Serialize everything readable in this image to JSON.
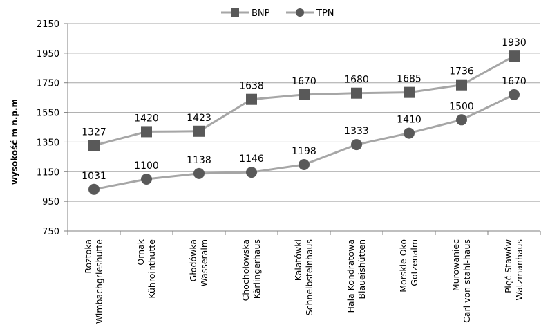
{
  "chart_data": {
    "type": "line",
    "title": "",
    "xlabel": "",
    "ylabel": "wysokość m n.p.m",
    "ylim": [
      750,
      2150
    ],
    "yticks": [
      750,
      950,
      1150,
      1350,
      1550,
      1750,
      1950,
      2150
    ],
    "grid": "horizontal",
    "legend_position": "top-center",
    "categories": [
      [
        "Roztoka",
        "Wimbachgrieshutte"
      ],
      [
        "Ornak",
        "Kührointhutte"
      ],
      [
        "Głodówka",
        "Wasseralm"
      ],
      [
        "Chochołowska",
        "Kärlingerhaus"
      ],
      [
        "Kalatówki",
        "Schneibsteinhaus"
      ],
      [
        "Hala Kondratowa",
        "Blaueishütten"
      ],
      [
        "Morskie Oko",
        "Gotzenalm"
      ],
      [
        "Murowaniec",
        "Carl von stahl-haus"
      ],
      [
        "Pięć Stawów",
        "Watzmanhaus"
      ]
    ],
    "series": [
      {
        "name": "BNP",
        "marker": "square",
        "color": "#a6a6a6",
        "marker_color": "#595959",
        "values": [
          1327,
          1420,
          1423,
          1638,
          1670,
          1680,
          1685,
          1736,
          1930
        ]
      },
      {
        "name": "TPN",
        "marker": "circle",
        "color": "#a6a6a6",
        "marker_color": "#595959",
        "values": [
          1031,
          1100,
          1138,
          1146,
          1198,
          1333,
          1410,
          1500,
          1670
        ]
      }
    ]
  }
}
